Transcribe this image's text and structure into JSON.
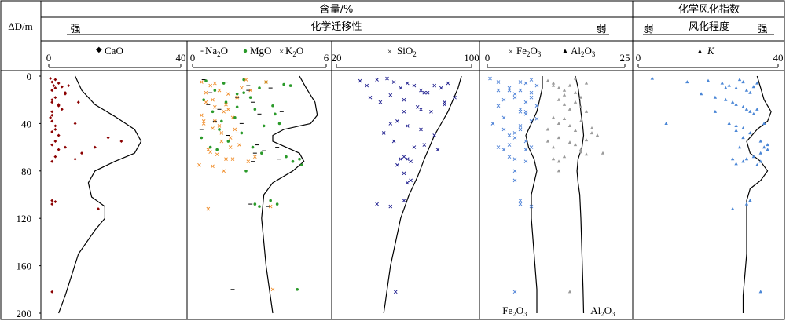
{
  "header": {
    "left_col_label": "ΔD/m",
    "content_title": "含量/%",
    "migration_title": "化学迁移性",
    "strong": "强",
    "weak": "弱",
    "index_title": "化学风化指数",
    "degree_title": "风化程度",
    "index_weak": "弱",
    "index_strong": "强"
  },
  "colors": {
    "CaO": "#8b0000",
    "Na2O": "#000000",
    "MgO": "#2a9a2a",
    "K2O": "#f08c28",
    "SiO2": "#1a1a8c",
    "Fe2O3": "#4a7fd6",
    "Al2O3": "#9a9a9a",
    "K": "#4a86d6",
    "line": "#000000"
  },
  "chart_data": [
    {
      "type": "scatter",
      "panel": "CaO",
      "xlim": [
        0,
        40
      ],
      "x_ticks": [
        "0",
        "40"
      ],
      "ylim": [
        0,
        200
      ],
      "y_ticks": [
        0,
        40,
        80,
        120,
        160,
        200
      ],
      "series": [
        {
          "name": "CaO",
          "x": [
            0.5,
            1,
            1.5,
            2,
            1,
            3,
            4,
            5,
            2,
            1,
            3,
            4,
            6,
            2,
            1,
            0.5,
            8,
            2,
            3,
            1,
            1,
            2,
            1,
            1,
            5,
            8,
            10,
            14,
            2,
            1,
            3,
            2,
            1,
            18,
            22,
            3,
            9,
            5,
            1,
            1,
            2,
            15,
            1
          ],
          "y": [
            2,
            5,
            8,
            10,
            12,
            6,
            9,
            14,
            18,
            22,
            25,
            28,
            8,
            3,
            30,
            35,
            40,
            45,
            50,
            38,
            33,
            42,
            47,
            20,
            60,
            70,
            65,
            60,
            55,
            58,
            62,
            68,
            72,
            52,
            55,
            24,
            22,
            15,
            105,
            108,
            106,
            112,
            182
          ]
        }
      ],
      "curves": [
        {
          "name": "",
          "x": [
            8,
            10,
            14,
            20,
            26,
            28,
            26,
            20,
            14,
            12,
            13,
            17,
            17,
            14,
            9,
            5,
            3
          ],
          "y": [
            0,
            12,
            24,
            34,
            45,
            55,
            65,
            72,
            80,
            90,
            102,
            110,
            120,
            130,
            150,
            185,
            200
          ]
        }
      ]
    },
    {
      "type": "scatter",
      "panel": "Na2O-MgO-K2O",
      "xlim": [
        0,
        6
      ],
      "x_ticks": [
        "0",
        "6"
      ],
      "ylim": [
        0,
        200
      ],
      "series": [
        {
          "name": "Na2O",
          "x": [
            0.5,
            1.5,
            2.5,
            3.5,
            0.8,
            2.0,
            2.7,
            1.2,
            3.0,
            4.0,
            2.2,
            0.4,
            1.6,
            2.9,
            3.8,
            3.2,
            2.0,
            1.0,
            0.7,
            2.5,
            3.9,
            2.6,
            3.4,
            1.8,
            2.8,
            2.7
          ],
          "y": [
            3,
            5,
            8,
            10,
            14,
            18,
            22,
            28,
            32,
            30,
            40,
            45,
            50,
            58,
            60,
            63,
            48,
            38,
            24,
            12,
            70,
            108,
            110,
            180,
            65,
            72
          ]
        },
        {
          "name": "MgO",
          "x": [
            0.6,
            1.4,
            2.3,
            3.3,
            4.1,
            1.0,
            2.0,
            3.0,
            0.5,
            1.5,
            2.6,
            3.6,
            4.4,
            0.9,
            1.9,
            2.8,
            3.9,
            1.2,
            2.2,
            3.2,
            4.8,
            1.6,
            2.7,
            4.5,
            3.1,
            4.2,
            1.3,
            0.8,
            2.4,
            2.8,
            3.0,
            3.5,
            3.8,
            2.3,
            4.7,
            4.9,
            0.4,
            1.1,
            3.7,
            2.0
          ],
          "y": [
            4,
            6,
            3,
            5,
            7,
            12,
            15,
            10,
            20,
            22,
            18,
            25,
            8,
            30,
            35,
            28,
            40,
            45,
            48,
            42,
            70,
            55,
            60,
            72,
            65,
            68,
            38,
            60,
            80,
            108,
            110,
            105,
            108,
            14,
            180,
            75,
            52,
            62,
            32,
            26
          ]
        },
        {
          "name": "K2O",
          "x": [
            0.4,
            0.8,
            1.2,
            1.6,
            2.0,
            0.6,
            1.0,
            1.4,
            1.8,
            0.5,
            0.9,
            1.3,
            1.7,
            2.1,
            0.7,
            1.1,
            1.5,
            0.3,
            0.9,
            1.6,
            2.2,
            0.4,
            1.0,
            1.3,
            2.5,
            0.8,
            3.3,
            2.6,
            1.9,
            1.4,
            0.6,
            2.8,
            1.7,
            0.9,
            1.2,
            1.5,
            1.0,
            0.5,
            2.4,
            3.6,
            0.7,
            1.8,
            3.5
          ],
          "y": [
            5,
            8,
            12,
            15,
            18,
            22,
            26,
            30,
            35,
            40,
            44,
            48,
            52,
            58,
            62,
            66,
            70,
            75,
            20,
            28,
            10,
            33,
            38,
            55,
            72,
            64,
            5,
            12,
            45,
            80,
            14,
            68,
            60,
            76,
            42,
            24,
            6,
            38,
            3,
            180,
            112,
            70,
            110
          ]
        }
      ],
      "curves": [
        {
          "name": "",
          "x": [
            4.8,
            5.1,
            5.5,
            5.6,
            5.3,
            4.1,
            3.6,
            3.6,
            4.2,
            4.8,
            5.0,
            4.5,
            3.6,
            3.2,
            3.1,
            3.3,
            3.6
          ],
          "y": [
            0,
            10,
            22,
            33,
            40,
            45,
            50,
            55,
            60,
            65,
            72,
            80,
            90,
            100,
            120,
            160,
            200
          ]
        }
      ]
    },
    {
      "type": "scatter",
      "panel": "SiO2",
      "xlim": [
        20,
        100
      ],
      "x_ticks": [
        "20",
        "100"
      ],
      "ylim": [
        0,
        200
      ],
      "series": [
        {
          "name": "SiO2",
          "x": [
            34,
            38,
            44,
            50,
            54,
            58,
            62,
            66,
            70,
            74,
            78,
            82,
            86,
            40,
            46,
            52,
            60,
            68,
            76,
            84,
            56,
            62,
            70,
            48,
            54,
            66,
            72,
            80,
            60,
            62,
            64,
            58,
            56,
            52,
            60,
            70,
            84,
            90,
            72,
            60,
            64,
            44,
            52,
            60,
            55,
            62,
            78
          ],
          "y": [
            4,
            8,
            3,
            2,
            5,
            10,
            6,
            8,
            12,
            14,
            8,
            10,
            6,
            18,
            22,
            16,
            20,
            26,
            30,
            24,
            38,
            42,
            45,
            48,
            55,
            60,
            58,
            62,
            68,
            70,
            72,
            70,
            75,
            40,
            30,
            28,
            22,
            18,
            14,
            82,
            88,
            108,
            110,
            105,
            182,
            90,
            50
          ]
        }
      ],
      "curves": [
        {
          "name": "",
          "x": [
            94,
            92,
            86,
            78,
            72,
            68,
            63,
            58,
            55,
            52,
            50,
            49,
            48
          ],
          "y": [
            0,
            10,
            30,
            50,
            70,
            85,
            100,
            120,
            140,
            160,
            180,
            190,
            200
          ]
        }
      ]
    },
    {
      "type": "scatter",
      "panel": "Fe2O3-Al2O3",
      "xlim": [
        0,
        25
      ],
      "x_ticks": [
        "0",
        "25"
      ],
      "ylim": [
        0,
        200
      ],
      "series": [
        {
          "name": "Fe2O3",
          "x": [
            0.5,
            2,
            4,
            6,
            7,
            8,
            9,
            5,
            3,
            2,
            1,
            6,
            7,
            8,
            9,
            3,
            4,
            5,
            7,
            8,
            6,
            2,
            3,
            4,
            5,
            6,
            7,
            8,
            5,
            3,
            4,
            7,
            5,
            6,
            6,
            7,
            8,
            4,
            5,
            2,
            1,
            6,
            9,
            8,
            5,
            6,
            7,
            5
          ],
          "y": [
            2,
            5,
            10,
            12,
            6,
            3,
            8,
            15,
            20,
            25,
            40,
            28,
            32,
            38,
            36,
            45,
            50,
            52,
            55,
            60,
            42,
            60,
            62,
            68,
            70,
            30,
            22,
            18,
            48,
            35,
            12,
            62,
            80,
            105,
            108,
            72,
            110,
            58,
            18,
            12,
            40,
            5,
            25,
            14,
            182,
            45,
            30,
            88
          ]
        },
        {
          "name": "Al2O3",
          "x": [
            11,
            12,
            13,
            14,
            15,
            16,
            17,
            18,
            13,
            14,
            15,
            16,
            17,
            18,
            12,
            13,
            14,
            15,
            16,
            17,
            19,
            20,
            11,
            12,
            16,
            17,
            18,
            12,
            13,
            14,
            11,
            13,
            15,
            17,
            18,
            19,
            12,
            14,
            16,
            13,
            15,
            21
          ],
          "y": [
            4,
            6,
            10,
            12,
            8,
            14,
            18,
            6,
            20,
            24,
            28,
            22,
            26,
            30,
            35,
            40,
            36,
            42,
            46,
            38,
            44,
            50,
            55,
            60,
            58,
            62,
            66,
            70,
            72,
            68,
            45,
            52,
            56,
            64,
            54,
            48,
            8,
            16,
            2,
            80,
            182,
            65
          ]
        }
      ],
      "curves": [
        {
          "name": "Fe2O3",
          "x": [
            10,
            10,
            9.5,
            9,
            8,
            7,
            7.5,
            8.5,
            9,
            8.5,
            8,
            8,
            8.5,
            9,
            9
          ],
          "y": [
            0,
            10,
            20,
            30,
            40,
            50,
            60,
            70,
            80,
            90,
            100,
            120,
            150,
            180,
            200
          ]
        },
        {
          "name": "Al2O3",
          "x": [
            16,
            16.5,
            16.8,
            17,
            17.3,
            17.5,
            17.2,
            16.5,
            16.3,
            16.5,
            16.8,
            17,
            17.2,
            17.4,
            17.5
          ],
          "y": [
            0,
            10,
            20,
            30,
            40,
            50,
            60,
            70,
            80,
            90,
            100,
            120,
            150,
            180,
            200
          ]
        }
      ]
    },
    {
      "type": "scatter",
      "panel": "K",
      "xlim": [
        0,
        40
      ],
      "x_ticks": [
        "0",
        "40"
      ],
      "ylim": [
        0,
        200
      ],
      "series": [
        {
          "name": "K",
          "x": [
            4,
            8,
            14,
            20,
            24,
            26,
            28,
            29,
            30,
            31,
            32,
            33,
            34,
            22,
            25,
            27,
            28,
            30,
            31,
            32,
            33,
            34,
            26,
            28,
            30,
            32,
            35,
            36,
            37,
            35,
            33,
            31,
            30,
            28,
            27,
            29,
            34,
            35,
            37,
            30,
            28,
            31,
            27,
            32,
            35,
            36,
            22,
            18,
            25
          ],
          "y": [
            2,
            40,
            5,
            4,
            6,
            8,
            10,
            3,
            5,
            12,
            14,
            9,
            6,
            18,
            20,
            22,
            24,
            26,
            28,
            30,
            32,
            28,
            40,
            42,
            44,
            48,
            55,
            60,
            62,
            65,
            68,
            70,
            72,
            74,
            70,
            60,
            75,
            72,
            58,
            52,
            46,
            108,
            112,
            105,
            182,
            40,
            30,
            15,
            10
          ]
        }
      ],
      "curves": [
        {
          "name": "",
          "x": [
            34,
            35,
            36,
            38,
            37,
            34,
            31,
            32,
            35,
            37,
            35,
            32,
            31,
            31,
            31,
            30,
            30
          ],
          "y": [
            0,
            10,
            20,
            30,
            38,
            45,
            55,
            65,
            72,
            80,
            88,
            95,
            105,
            120,
            150,
            185,
            200
          ]
        }
      ]
    }
  ],
  "legend_labels": {
    "CaO": "CaO",
    "Na2O": "Na",
    "Na2O_sub": "2",
    "Na2O_tail": "O",
    "MgO": "MgO",
    "K2O": "K",
    "K2O_sub": "2",
    "K2O_tail": "O",
    "SiO2": "SiO",
    "SiO2_sub": "2",
    "Fe2O3": "Fe",
    "Fe2O3_sub1": "2",
    "Fe2O3_mid": "O",
    "Fe2O3_sub2": "3",
    "Al2O3": "Al",
    "Al2O3_sub1": "2",
    "Al2O3_mid": "O",
    "Al2O3_sub2": "3",
    "K": "K"
  },
  "curve_labels": {
    "Fe2O3": "Fe₂O₃",
    "Al2O3": "Al₂O₃"
  }
}
